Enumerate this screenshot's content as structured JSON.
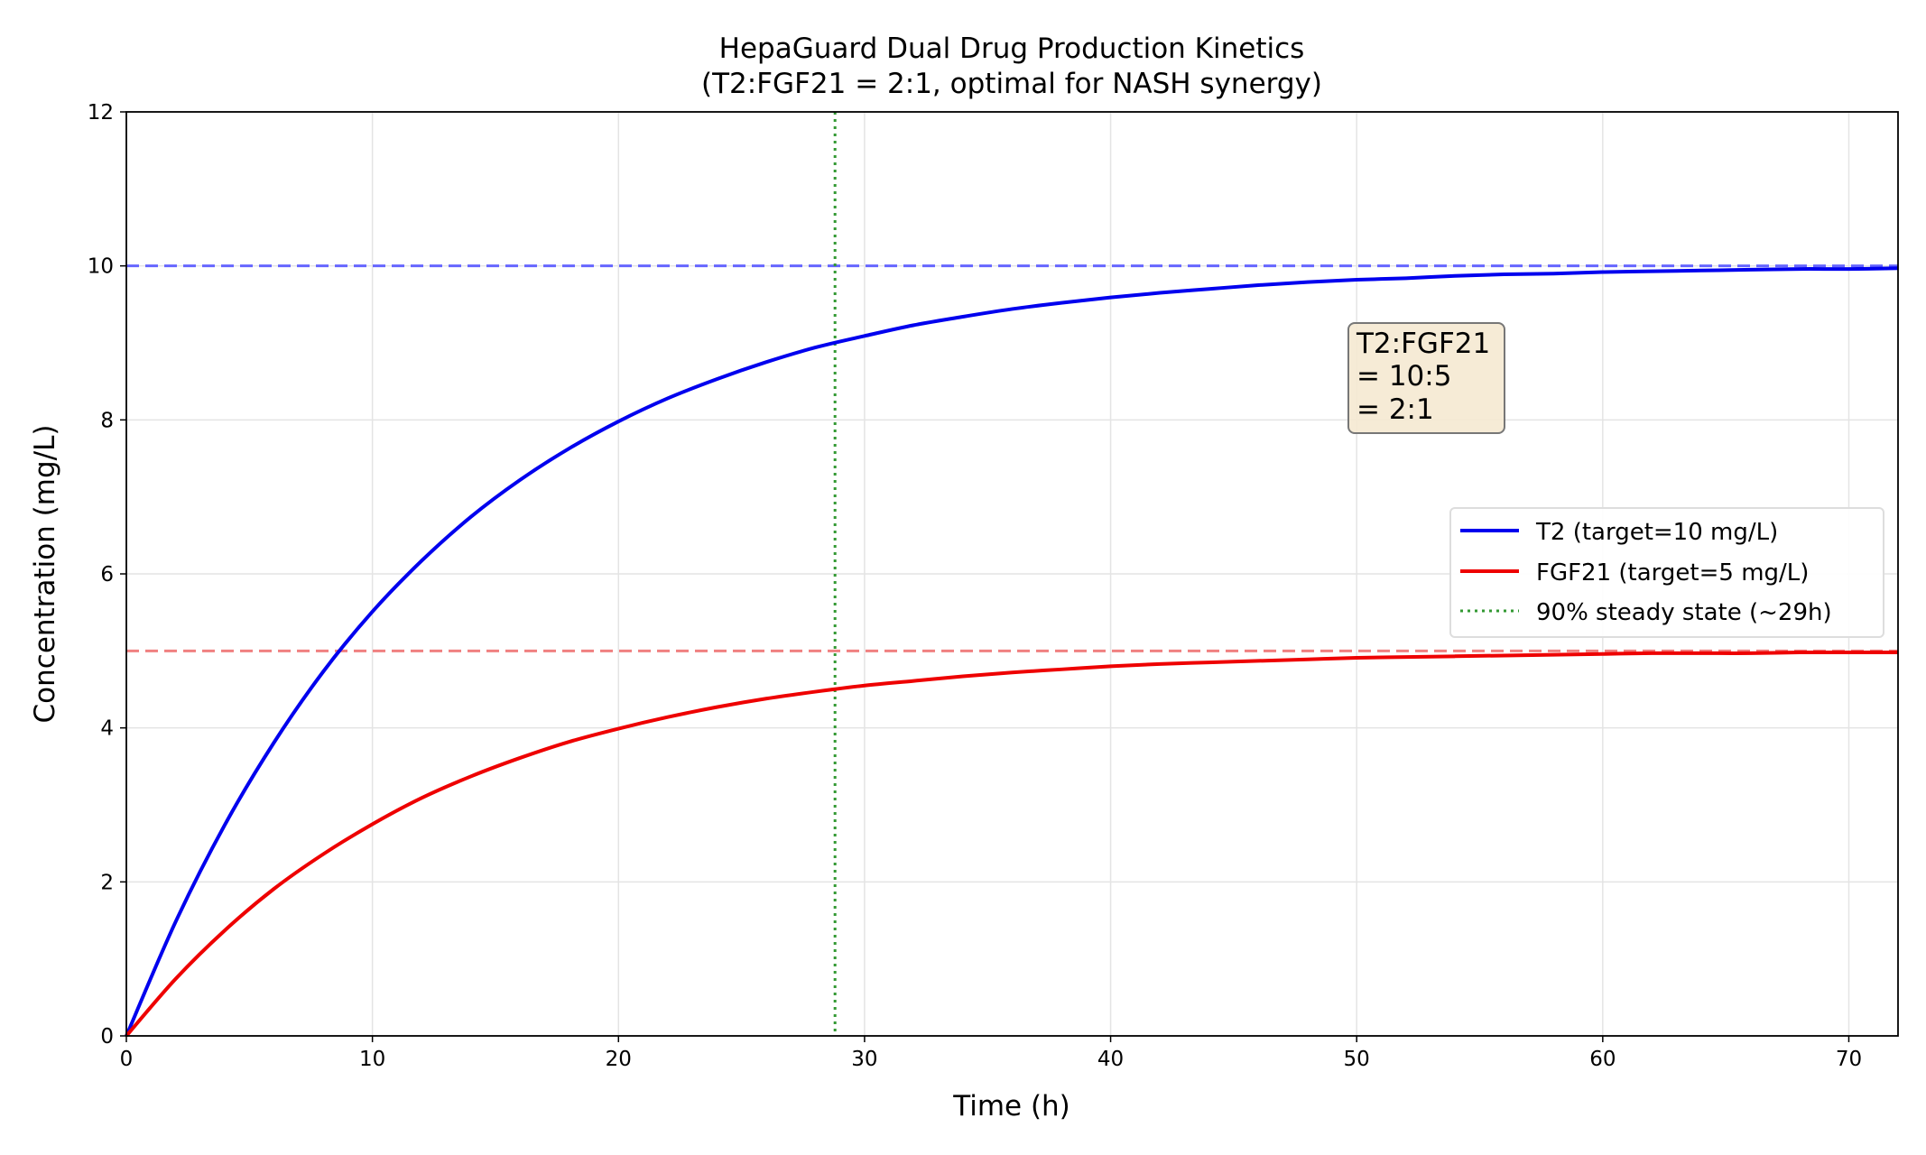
{
  "chart_data": {
    "type": "line",
    "title": "HepaGuard Dual Drug Production Kinetics",
    "subtitle": "(T2:FGF21 = 2:1, optimal for NASH synergy)",
    "xlabel": "Time (h)",
    "ylabel": "Concentration (mg/L)",
    "xlim": [
      0,
      72
    ],
    "ylim": [
      0,
      12
    ],
    "xticks": [
      0,
      10,
      20,
      30,
      40,
      50,
      60,
      70
    ],
    "yticks": [
      0,
      2,
      4,
      6,
      8,
      10,
      12
    ],
    "grid": true,
    "legend_position": "center-right",
    "x": [
      0,
      2,
      4,
      6,
      8,
      10,
      12,
      14,
      16,
      18,
      20,
      22,
      24,
      26,
      28,
      30,
      32,
      34,
      36,
      38,
      40,
      42,
      44,
      46,
      48,
      50,
      52,
      54,
      56,
      58,
      60,
      62,
      64,
      66,
      68,
      70,
      72
    ],
    "series": [
      {
        "name": "T2 (target=10 mg/L)",
        "color": "#0000ee",
        "values": [
          0,
          1.48,
          2.74,
          3.81,
          4.73,
          5.51,
          6.17,
          6.74,
          7.22,
          7.63,
          7.98,
          8.28,
          8.53,
          8.75,
          8.94,
          9.09,
          9.23,
          9.34,
          9.44,
          9.52,
          9.59,
          9.65,
          9.7,
          9.75,
          9.79,
          9.82,
          9.84,
          9.87,
          9.89,
          9.9,
          9.92,
          9.93,
          9.94,
          9.95,
          9.96,
          9.96,
          9.97
        ]
      },
      {
        "name": "FGF21 (target=5 mg/L)",
        "color": "#ee0000",
        "values": [
          0,
          0.74,
          1.37,
          1.91,
          2.36,
          2.75,
          3.09,
          3.37,
          3.61,
          3.82,
          3.99,
          4.14,
          4.27,
          4.38,
          4.47,
          4.55,
          4.61,
          4.67,
          4.72,
          4.76,
          4.8,
          4.83,
          4.85,
          4.87,
          4.89,
          4.91,
          4.92,
          4.93,
          4.94,
          4.95,
          4.96,
          4.97,
          4.97,
          4.97,
          4.98,
          4.98,
          4.98
        ]
      }
    ],
    "reference_lines": [
      {
        "orientation": "horizontal",
        "value": 10,
        "color": "#6666ff",
        "style": "dashed"
      },
      {
        "orientation": "horizontal",
        "value": 5,
        "color": "#f08080",
        "style": "dashed"
      },
      {
        "orientation": "vertical",
        "value": 28.8,
        "color": "#339933",
        "style": "dotted",
        "name": "90% steady state (~29h)"
      }
    ],
    "annotation": {
      "lines": [
        "T2:FGF21",
        "= 10:5",
        "= 2:1"
      ],
      "x": 50,
      "y": 8.6
    }
  }
}
